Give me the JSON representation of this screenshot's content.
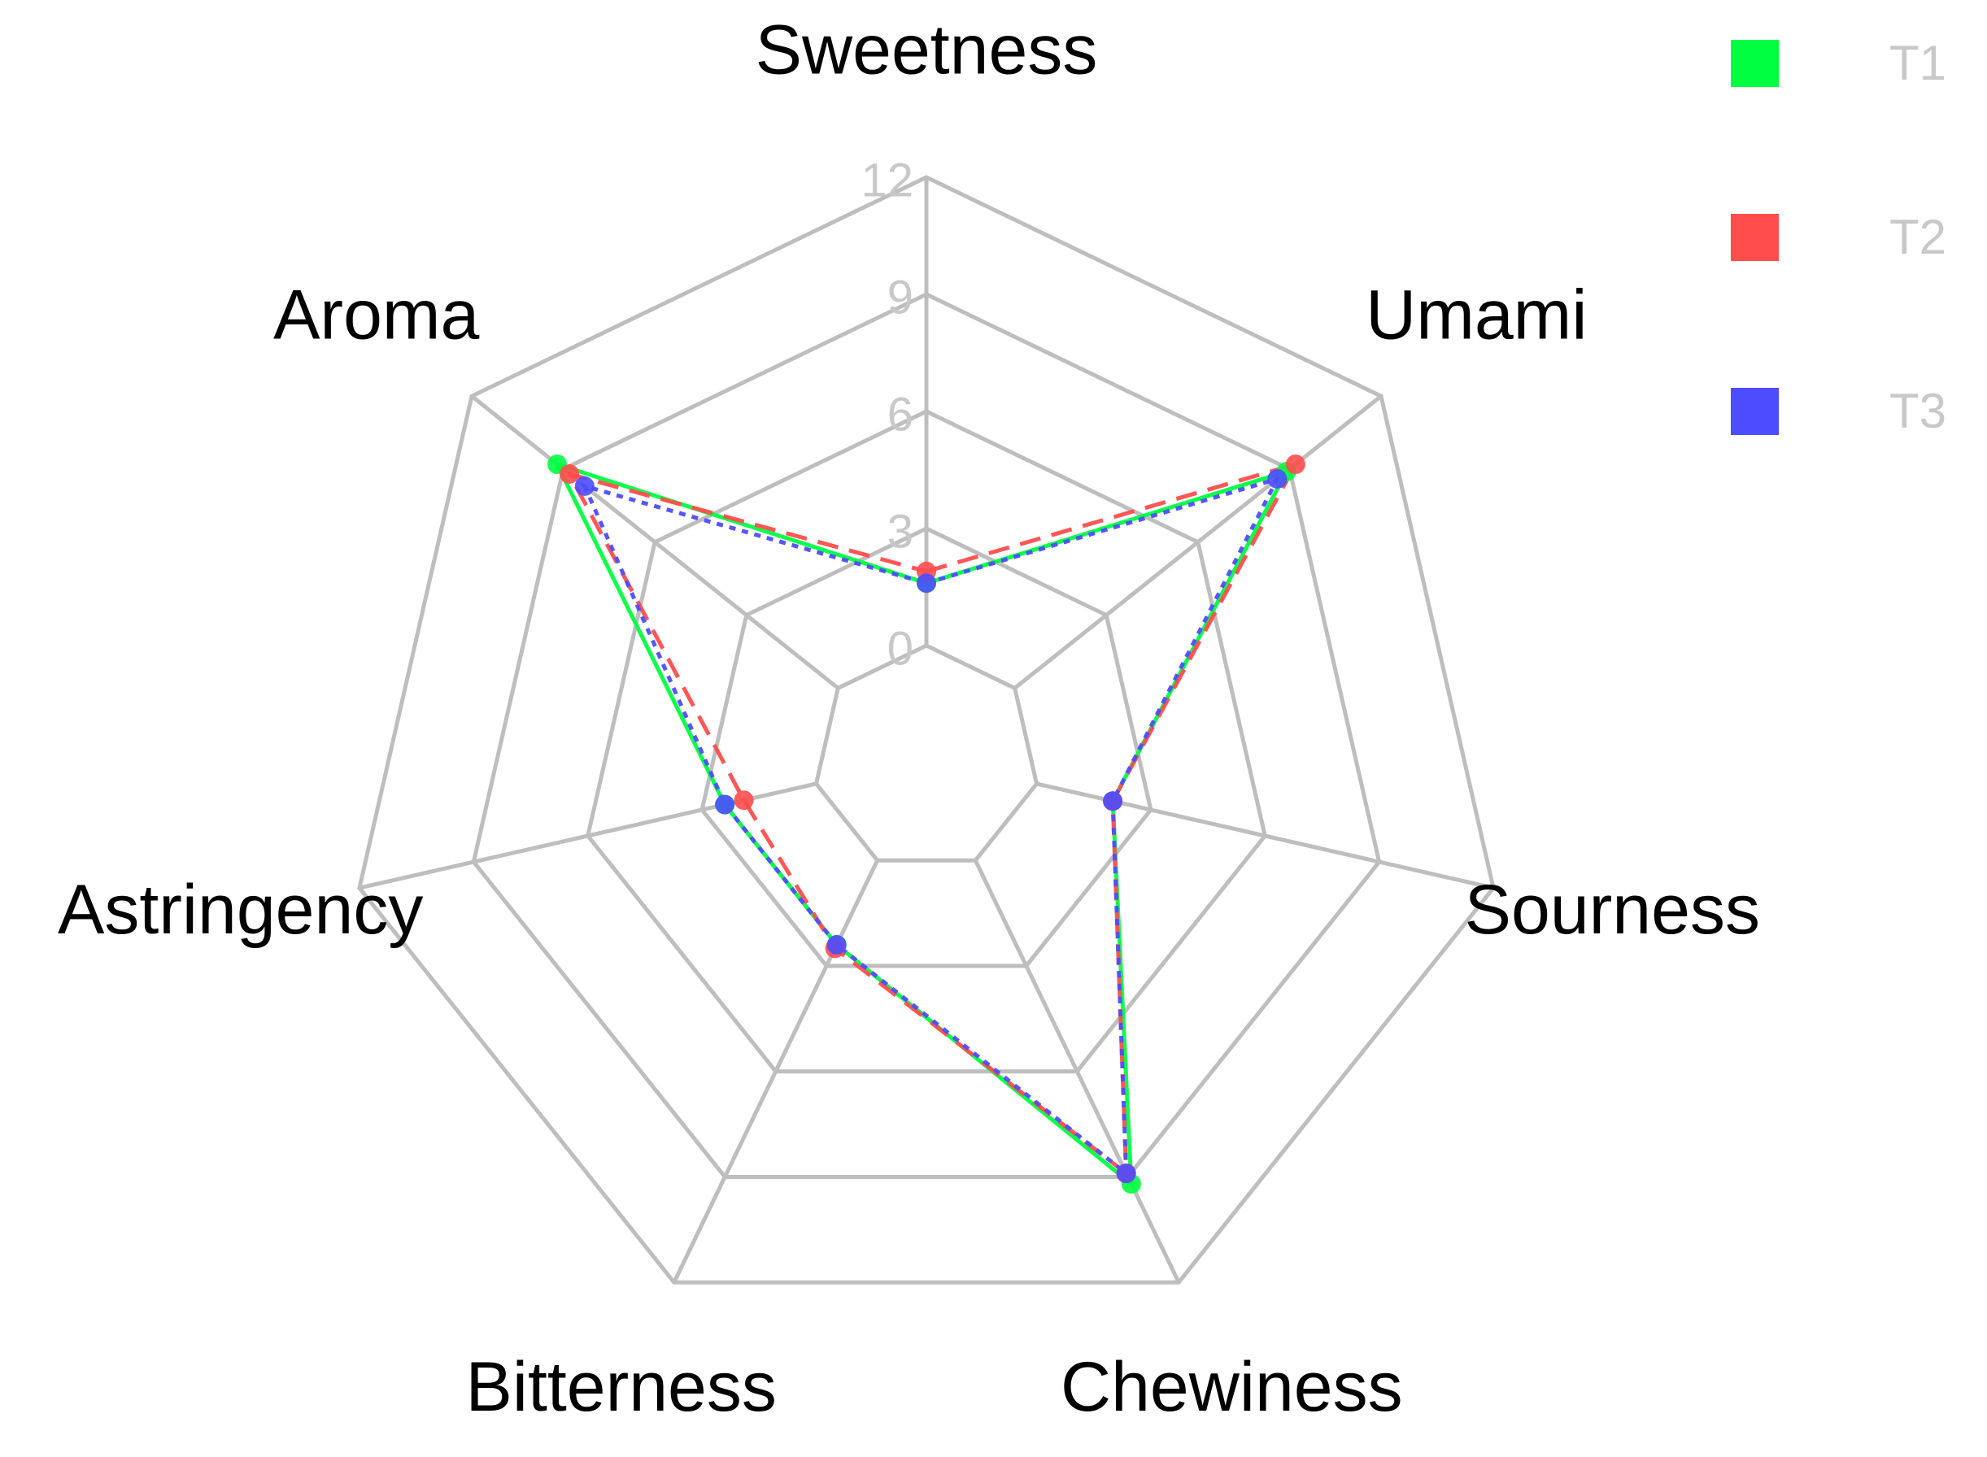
{
  "chart_data": {
    "type": "radar",
    "categories": [
      "Sweetness",
      "Umami",
      "Sourness",
      "Chewiness",
      "Bitterness",
      "Astringency",
      "Aroma"
    ],
    "series": [
      {
        "name": "T1",
        "color": "#00ff40",
        "linestyle": "solid",
        "values": [
          1.6,
          8.9,
          2.0,
          9.2,
          2.4,
          2.4,
          9.2
        ]
      },
      {
        "name": "T2",
        "color": "#ff4d4d",
        "linestyle": "dashed",
        "values": [
          1.9,
          9.2,
          2.0,
          8.9,
          2.5,
          1.9,
          8.8
        ]
      },
      {
        "name": "T3",
        "color": "#4d4dff",
        "linestyle": "dotted",
        "values": [
          1.6,
          8.6,
          2.0,
          8.9,
          2.4,
          2.4,
          8.3
        ]
      }
    ],
    "ylim": [
      0,
      12
    ],
    "yticks": [
      0,
      3,
      6,
      9,
      12
    ],
    "grid": true,
    "legend": "top-right"
  }
}
